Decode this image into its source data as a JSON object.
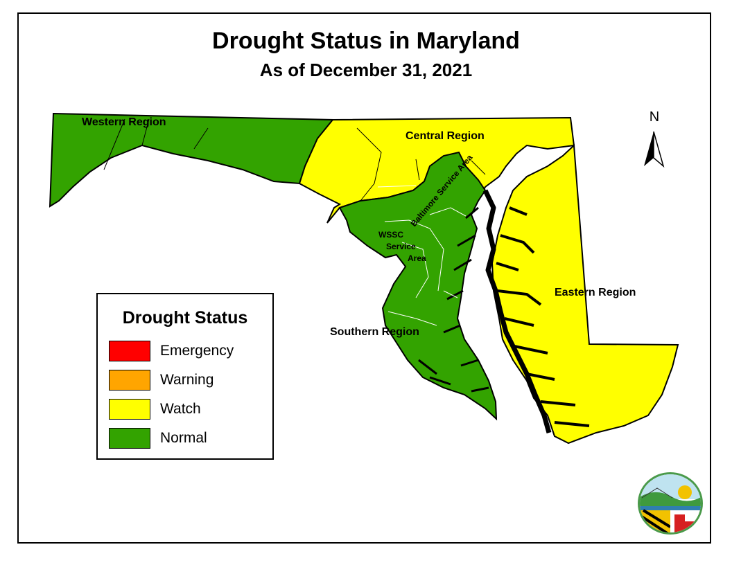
{
  "title": "Drought Status in Maryland",
  "subtitle": "As of December 31, 2021",
  "north_arrow": {
    "letter": "N",
    "icon": "north-arrow-icon"
  },
  "regions": {
    "western": {
      "label": "Western Region",
      "status": "Normal"
    },
    "central": {
      "label": "Central Region",
      "status": "Watch"
    },
    "eastern": {
      "label": "Eastern Region",
      "status": "Watch"
    },
    "southern": {
      "label": "Southern Region",
      "status": "Normal"
    },
    "baltimore": {
      "label": "Baltimore Service Area",
      "status": "Normal"
    },
    "wssc": {
      "line1": "WSSC",
      "line2": "Service",
      "line3": "Area",
      "status": "Normal"
    }
  },
  "legend": {
    "title": "Drought Status",
    "items": [
      {
        "label": "Emergency",
        "color": "#ff0000"
      },
      {
        "label": "Warning",
        "color": "#ffa500"
      },
      {
        "label": "Watch",
        "color": "#ffff00"
      },
      {
        "label": "Normal",
        "color": "#33a300"
      }
    ]
  },
  "colors": {
    "normal": "#33a300",
    "watch": "#ffff00",
    "water": "#000000"
  },
  "logo": {
    "icon": "maryland-department-of-environment-seal-icon"
  }
}
